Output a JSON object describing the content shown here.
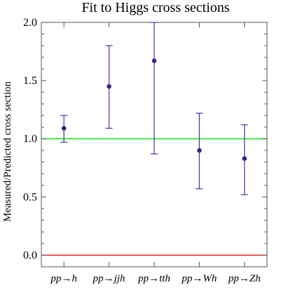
{
  "chart_data": {
    "type": "scatter",
    "title": "Fit to Higgs cross sections",
    "xlabel": "",
    "ylabel": "Measured/Predicted cross section",
    "ylim": [
      -0.1,
      2.0
    ],
    "yticks": [
      "0.0",
      "0.5",
      "1.0",
      "1.5",
      "2.0"
    ],
    "categories": [
      "pp→h",
      "pp→jjh",
      "pp→tth",
      "pp→Wh",
      "pp→Zh"
    ],
    "values": [
      1.09,
      1.45,
      1.67,
      0.9,
      0.83
    ],
    "error_low": [
      0.97,
      1.09,
      0.87,
      0.57,
      0.52
    ],
    "error_high": [
      1.2,
      1.8,
      2.0,
      1.22,
      1.12
    ],
    "reference_lines": [
      {
        "y": 1.0,
        "color": "#00e000"
      },
      {
        "y": 0.0,
        "color": "#e00000"
      }
    ],
    "marker_color": "#2b2b8c",
    "errorbar_color": "#3a3aa8",
    "grid": false
  }
}
